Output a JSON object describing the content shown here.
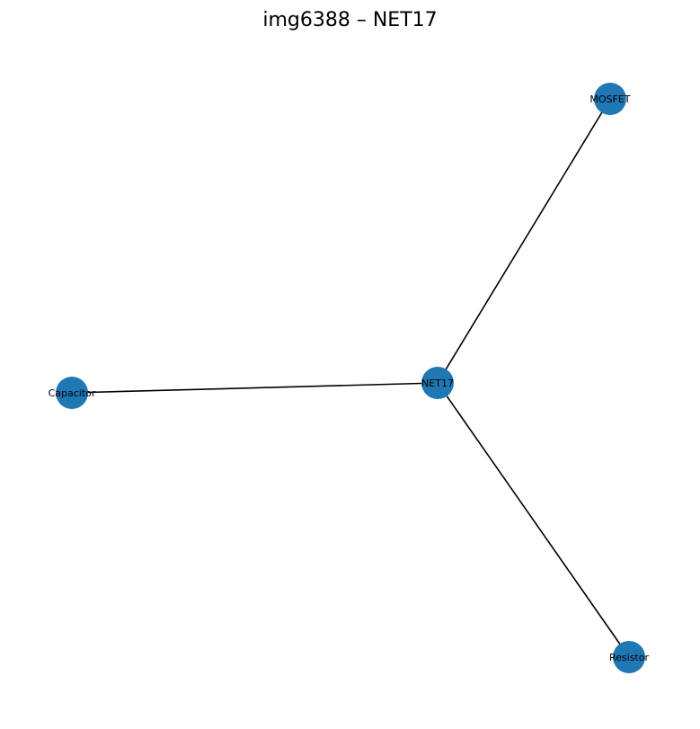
{
  "title": "img6388 – NET17",
  "colors": {
    "node_fill": "#1f77b4",
    "edge": "#000000",
    "label": "#000000",
    "background": "#ffffff"
  },
  "nodes": [
    {
      "id": "NET17",
      "label": "NET17"
    },
    {
      "id": "MOSFET",
      "label": "MOSFET"
    },
    {
      "id": "Capacitor",
      "label": "Capacitor"
    },
    {
      "id": "Resistor",
      "label": "Resistor"
    }
  ],
  "edges": [
    {
      "source": "NET17",
      "target": "MOSFET"
    },
    {
      "source": "NET17",
      "target": "Capacitor"
    },
    {
      "source": "NET17",
      "target": "Resistor"
    }
  ]
}
